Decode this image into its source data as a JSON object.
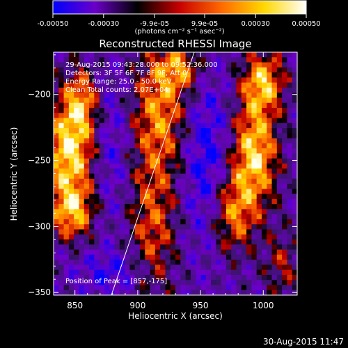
{
  "colorbar": {
    "ticks": [
      "-0.00050",
      "-0.00030",
      "-9.9e-05",
      "9.9e-05",
      "0.00030",
      "0.00050"
    ],
    "tick_values": [
      -0.0005,
      -0.0003,
      -9.9e-05,
      9.9e-05,
      0.0003,
      0.0005
    ],
    "range": [
      -0.0005,
      0.0005
    ],
    "units": "(photons cm⁻² s⁻¹ asec⁻²)",
    "colors": [
      "#0000ff",
      "#6a00c8",
      "#000000",
      "#c80000",
      "#ff6a00",
      "#ffd800",
      "#ffffff"
    ]
  },
  "chart_data": {
    "type": "heatmap",
    "title": "Reconstructed RHESSI Image",
    "xlabel": "Heliocentric X (arcsec)",
    "ylabel": "Heliocentric Y (arcsec)",
    "xlim": [
      833,
      1027
    ],
    "ylim": [
      -352,
      -168
    ],
    "x_ticks": [
      850,
      900,
      950,
      1000
    ],
    "y_ticks": [
      -200,
      -250,
      -300,
      -350
    ],
    "x_tick_labels": [
      "850",
      "900",
      "950",
      "1000"
    ],
    "y_tick_labels": [
      "−200",
      "−250",
      "−300",
      "−350"
    ],
    "annotations": [
      "29-Aug-2015 09:43:28.000 to 09:52:36.000",
      "Detectors: 3F 5F 6F 7F 8F 9F, Att 0",
      "Energy Range: 25.0 - 50.0 keV",
      "Clean    Total counts: 2.07E+04"
    ],
    "peak_label": "Position of Peak = [857,-175]",
    "peak": [
      857,
      -175
    ],
    "limb_line": [
      [
        879,
        -352
      ],
      [
        945,
        -168
      ]
    ],
    "grid": false,
    "features": [
      {
        "region": "left ridge",
        "x": [
          835,
          870
        ],
        "y": [
          -310,
          -200
        ],
        "level": "high"
      },
      {
        "region": "central warm band",
        "x": [
          895,
          935
        ],
        "y": [
          -350,
          -175
        ],
        "level": "medium"
      },
      {
        "region": "central minimum",
        "x": [
          940,
          970
        ],
        "y": [
          -300,
          -200
        ],
        "level": "low"
      },
      {
        "region": "right ridge",
        "x": [
          975,
          1010
        ],
        "y": [
          -330,
          -180
        ],
        "level": "high"
      }
    ]
  },
  "footer": {
    "timestamp": "30-Aug-2015 11:47"
  }
}
